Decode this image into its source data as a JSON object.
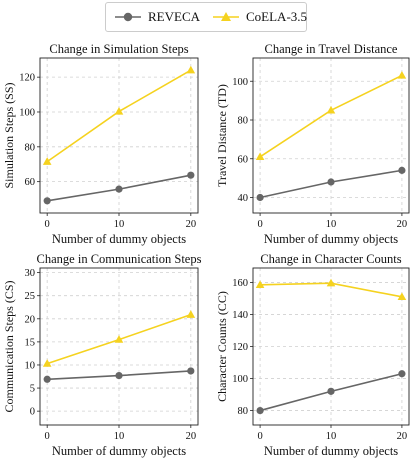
{
  "legend": [
    {
      "name": "REVECA",
      "color": "#666666",
      "marker": "circle"
    },
    {
      "name": "CoELA-3.5",
      "color": "#f5d21f",
      "marker": "triangle"
    }
  ],
  "chart_data": [
    {
      "type": "line",
      "title": "Change in Simulation Steps",
      "xlabel": "Number of dummy objects",
      "ylabel": "Simulation Steps (SS)",
      "x": [
        0,
        10,
        20
      ],
      "xticks": [
        "0",
        "10",
        "20"
      ],
      "xlim": [
        -1,
        21
      ],
      "ylim": [
        42,
        131
      ],
      "yticks": [
        40,
        60,
        80,
        100,
        120
      ],
      "yticklabels": [
        "",
        "60",
        "80",
        "100",
        "120"
      ],
      "grid": true,
      "series": [
        {
          "name": "REVECA",
          "color": "#666666",
          "marker": "circle",
          "values": [
            49,
            55.7,
            63.7
          ]
        },
        {
          "name": "CoELA-3.5",
          "color": "#f5d21f",
          "marker": "triangle",
          "values": [
            71.5,
            100.3,
            124
          ]
        }
      ]
    },
    {
      "type": "line",
      "title": "Change in Travel Distance",
      "xlabel": "Number of dummy objects",
      "ylabel": "Travel Distance (TD)",
      "x": [
        0,
        10,
        20
      ],
      "xticks": [
        "0",
        "10",
        "20"
      ],
      "xlim": [
        -1,
        21
      ],
      "ylim": [
        32,
        112
      ],
      "yticks": [
        40,
        60,
        80,
        100
      ],
      "yticklabels": [
        "40",
        "60",
        "80",
        "100"
      ],
      "grid": true,
      "series": [
        {
          "name": "REVECA",
          "color": "#666666",
          "marker": "circle",
          "values": [
            40,
            48,
            54
          ]
        },
        {
          "name": "CoELA-3.5",
          "color": "#f5d21f",
          "marker": "triangle",
          "values": [
            61,
            85,
            103
          ]
        }
      ]
    },
    {
      "type": "line",
      "title": "Change in Communication Steps",
      "xlabel": "Number of dummy objects",
      "ylabel": "Communication Steps (CS)",
      "x": [
        0,
        10,
        20
      ],
      "xticks": [
        "0",
        "10",
        "20"
      ],
      "xlim": [
        -1,
        21
      ],
      "ylim": [
        -3,
        31
      ],
      "yticks": [
        0,
        5,
        10,
        15,
        20,
        25,
        30
      ],
      "yticklabels": [
        "0",
        "5",
        "10",
        "15",
        "20",
        "25",
        "30"
      ],
      "grid": true,
      "series": [
        {
          "name": "REVECA",
          "color": "#666666",
          "marker": "circle",
          "values": [
            6.9,
            7.7,
            8.7
          ]
        },
        {
          "name": "CoELA-3.5",
          "color": "#f5d21f",
          "marker": "triangle",
          "values": [
            10.3,
            15.5,
            20.9
          ]
        }
      ]
    },
    {
      "type": "line",
      "title": "Change in Character Counts",
      "xlabel": "Number of dummy objects",
      "ylabel": "Character Counts (CC)",
      "x": [
        0,
        10,
        20
      ],
      "xticks": [
        "0",
        "10",
        "20"
      ],
      "xlim": [
        -1,
        21
      ],
      "ylim": [
        71,
        169
      ],
      "yticks": [
        80,
        100,
        120,
        140,
        160
      ],
      "yticklabels": [
        "80",
        "100",
        "120",
        "140",
        "160"
      ],
      "grid": true,
      "series": [
        {
          "name": "REVECA",
          "color": "#666666",
          "marker": "circle",
          "values": [
            80,
            92,
            103
          ]
        },
        {
          "name": "CoELA-3.5",
          "color": "#f5d21f",
          "marker": "triangle",
          "values": [
            158.5,
            159.5,
            151
          ]
        }
      ]
    }
  ]
}
